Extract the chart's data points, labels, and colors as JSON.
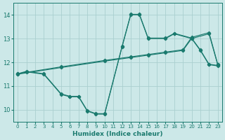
{
  "xlabel": "Humidex (Indice chaleur)",
  "bg_color": "#cce8e8",
  "line_color": "#1a7a6e",
  "grid_color": "#aacfcf",
  "line1_x": [
    0,
    1,
    3,
    5,
    6,
    7,
    8,
    9,
    10,
    12,
    13,
    14,
    15,
    17,
    18,
    20,
    21,
    22,
    23
  ],
  "line1_y": [
    11.5,
    11.6,
    11.5,
    10.65,
    10.55,
    10.55,
    9.95,
    9.82,
    9.82,
    12.65,
    14.0,
    14.0,
    13.0,
    13.0,
    13.2,
    13.0,
    12.5,
    11.9,
    11.85
  ],
  "line2_x": [
    0,
    1,
    3,
    5,
    6,
    7,
    8,
    9,
    10,
    12,
    13,
    14,
    15,
    17,
    18,
    20,
    21,
    22,
    23
  ],
  "line2_y": [
    11.52,
    11.62,
    11.52,
    10.67,
    10.57,
    10.57,
    9.97,
    9.84,
    9.84,
    12.67,
    14.02,
    14.02,
    13.02,
    13.02,
    13.22,
    13.02,
    12.52,
    11.92,
    11.87
  ],
  "line3_x": [
    0,
    5,
    10,
    13,
    15,
    17,
    19,
    20,
    22,
    23
  ],
  "line3_y": [
    11.5,
    11.78,
    12.05,
    12.2,
    12.3,
    12.4,
    12.5,
    13.0,
    13.2,
    11.9
  ],
  "line4_x": [
    0,
    5,
    10,
    13,
    15,
    17,
    19,
    20,
    22,
    23
  ],
  "line4_y": [
    11.52,
    11.81,
    12.08,
    12.23,
    12.33,
    12.43,
    12.53,
    13.05,
    13.25,
    11.92
  ],
  "xlim": [
    -0.5,
    23.5
  ],
  "ylim": [
    9.5,
    14.5
  ],
  "yticks": [
    10,
    11,
    12,
    13,
    14
  ],
  "xticks": [
    0,
    1,
    2,
    3,
    4,
    5,
    6,
    7,
    8,
    9,
    10,
    11,
    12,
    13,
    14,
    15,
    16,
    17,
    18,
    19,
    20,
    21,
    22,
    23
  ]
}
